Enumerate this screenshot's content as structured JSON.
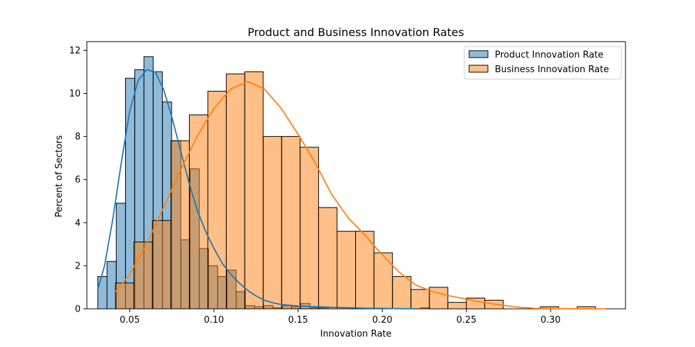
{
  "chart_data": {
    "type": "bar",
    "title": "Product and Business Innovation Rates",
    "xlabel": "Innovation Rate",
    "ylabel": "Percent of Sectors",
    "xlim": [
      -0.0,
      0.345
    ],
    "ylim": [
      0,
      12.4
    ],
    "x_ticks": [
      0.05,
      0.1,
      0.15,
      0.2,
      0.25,
      0.3
    ],
    "x_tick_labels": [
      "0.05",
      "0.10",
      "0.15",
      "0.20",
      "0.25",
      "0.30"
    ],
    "y_ticks": [
      0,
      2,
      4,
      6,
      8,
      10,
      12
    ],
    "y_tick_labels": [
      "0",
      "2",
      "4",
      "6",
      "8",
      "10",
      "12"
    ],
    "legend_position": "top-right",
    "series": [
      {
        "name": "Product Innovation Rate",
        "color": "#1f77b4",
        "bin_start": 0.031,
        "bin_width": 0.00548,
        "values": [
          1.5,
          2.2,
          4.9,
          10.7,
          11.1,
          11.7,
          11.0,
          9.6,
          7.8,
          3.2,
          6.5,
          2.8,
          2.0,
          1.5,
          1.8,
          0.8,
          0.15,
          0.1,
          0.15,
          0.05,
          0.15,
          0.1,
          0.25,
          0.05,
          0.05,
          0.0,
          0.0,
          0.0,
          0.0,
          0.0,
          0.0,
          0.0,
          0.0,
          0.0,
          0.0,
          0.05
        ],
        "kde": [
          [
            0.031,
            0.9
          ],
          [
            0.035,
            2.0
          ],
          [
            0.04,
            4.2
          ],
          [
            0.045,
            6.8
          ],
          [
            0.05,
            9.2
          ],
          [
            0.055,
            10.6
          ],
          [
            0.06,
            11.1
          ],
          [
            0.065,
            11.0
          ],
          [
            0.07,
            10.2
          ],
          [
            0.075,
            8.9
          ],
          [
            0.08,
            7.4
          ],
          [
            0.085,
            5.9
          ],
          [
            0.09,
            4.6
          ],
          [
            0.095,
            3.6
          ],
          [
            0.1,
            2.8
          ],
          [
            0.105,
            2.1
          ],
          [
            0.11,
            1.6
          ],
          [
            0.115,
            1.2
          ],
          [
            0.12,
            0.85
          ],
          [
            0.125,
            0.6
          ],
          [
            0.13,
            0.4
          ],
          [
            0.135,
            0.28
          ],
          [
            0.14,
            0.2
          ],
          [
            0.15,
            0.13
          ],
          [
            0.16,
            0.1
          ],
          [
            0.17,
            0.07
          ],
          [
            0.18,
            0.05
          ],
          [
            0.19,
            0.03
          ],
          [
            0.2,
            0.02
          ],
          [
            0.21,
            0.01
          ],
          [
            0.22,
            0.0
          ]
        ]
      },
      {
        "name": "Business Innovation Rate",
        "color": "#ff7f0e",
        "bin_start": 0.0415,
        "bin_width": 0.01097,
        "values": [
          1.2,
          3.1,
          4.1,
          7.8,
          9.0,
          10.1,
          10.9,
          11.0,
          8.0,
          8.0,
          7.5,
          4.7,
          3.6,
          3.6,
          2.6,
          1.5,
          0.9,
          1.0,
          0.3,
          0.5,
          0.4,
          0.0,
          0.0,
          0.1,
          0.0,
          0.1
        ],
        "kde": [
          [
            0.0415,
            0.8
          ],
          [
            0.05,
            1.6
          ],
          [
            0.06,
            3.0
          ],
          [
            0.07,
            4.7
          ],
          [
            0.08,
            6.4
          ],
          [
            0.09,
            8.0
          ],
          [
            0.1,
            9.3
          ],
          [
            0.11,
            10.2
          ],
          [
            0.12,
            10.55
          ],
          [
            0.13,
            10.2
          ],
          [
            0.14,
            9.3
          ],
          [
            0.15,
            8.1
          ],
          [
            0.16,
            6.8
          ],
          [
            0.17,
            5.3
          ],
          [
            0.18,
            4.2
          ],
          [
            0.19,
            3.4
          ],
          [
            0.2,
            2.5
          ],
          [
            0.21,
            1.7
          ],
          [
            0.22,
            1.1
          ],
          [
            0.23,
            0.8
          ],
          [
            0.24,
            0.6
          ],
          [
            0.25,
            0.45
          ],
          [
            0.26,
            0.3
          ],
          [
            0.27,
            0.18
          ],
          [
            0.28,
            0.08
          ],
          [
            0.29,
            0.03
          ],
          [
            0.3,
            0.02
          ],
          [
            0.31,
            0.01
          ],
          [
            0.32,
            0.0
          ],
          [
            0.333,
            0.0
          ]
        ]
      }
    ]
  }
}
